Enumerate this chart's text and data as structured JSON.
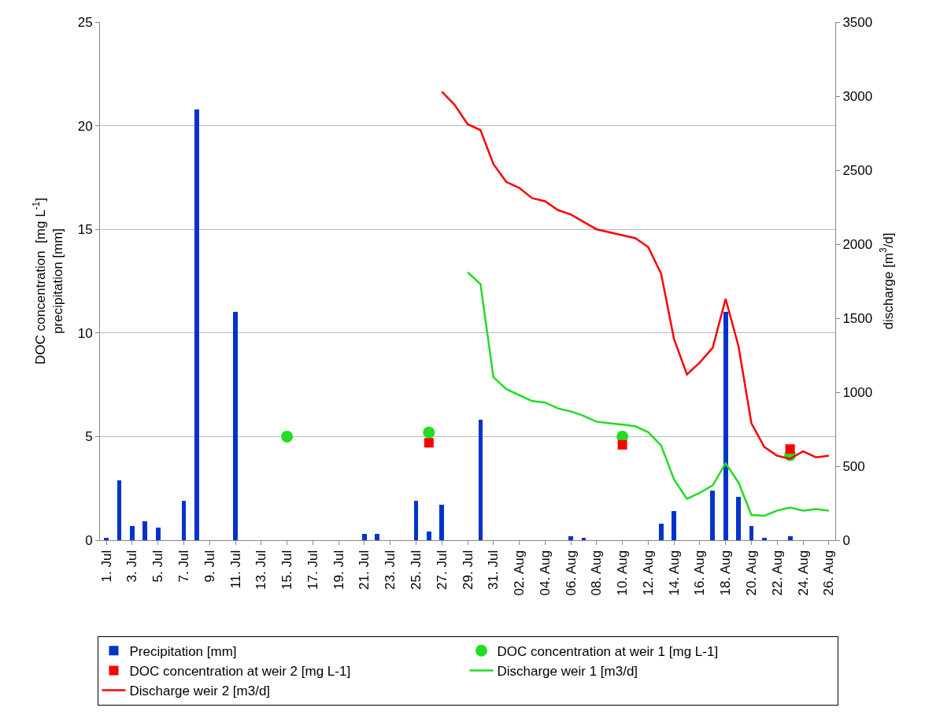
{
  "chart_data": {
    "type": "bar",
    "ylabel": "DOC concentration  [mg L$^{-1}$]\nprecipitation [mm]",
    "y2label": "discharge [m$^{3}$/d]",
    "categories": [
      "1. Jul",
      null,
      "3. Jul",
      null,
      "5. Jul",
      null,
      "7. Jul",
      null,
      "9. Jul",
      null,
      "11. Jul",
      null,
      "13. Jul",
      null,
      "15. Jul",
      null,
      "17. Jul",
      null,
      "19. Jul",
      null,
      "21. Jul",
      null,
      "23. Jul",
      null,
      "25. Jul",
      null,
      "27. Jul",
      null,
      "29. Jul",
      null,
      "31. Jul",
      null,
      "02. Aug",
      null,
      "04. Aug",
      null,
      "06. Aug",
      null,
      "08. Aug",
      null,
      "10. Aug",
      null,
      "12. Aug",
      null,
      "14. Aug",
      null,
      "16. Aug",
      null,
      "18. Aug",
      null,
      "20. Aug",
      null,
      "22. Aug",
      null,
      "24. Aug",
      null,
      "26. Aug"
    ],
    "series": [
      {
        "name": "Precipitation [mm]",
        "color": "#0033cc",
        "values": [
          0.1,
          2.9,
          0.7,
          0.9,
          0.6,
          0,
          1.9,
          20.8,
          0,
          0,
          11.0,
          0,
          0,
          0,
          0,
          0,
          0,
          0,
          0,
          0,
          0.3,
          0.3,
          0,
          0,
          1.9,
          0.4,
          1.7,
          0,
          0,
          5.8,
          0,
          0,
          0,
          0,
          0,
          0,
          0.2,
          0.1,
          0,
          0,
          0,
          0,
          0,
          0.8,
          1.4,
          0,
          0,
          2.4,
          11.0,
          2.1,
          0.7,
          0.1,
          0,
          0.2,
          0,
          0,
          0
        ]
      },
      {
        "name": "DOC concentration at weir 1 [mg L-1]",
        "type": "scatter",
        "marker": "circle",
        "color": "#22dd22",
        "values": [
          null,
          null,
          null,
          null,
          null,
          null,
          null,
          null,
          null,
          null,
          null,
          null,
          null,
          null,
          5.0,
          null,
          null,
          null,
          null,
          null,
          null,
          null,
          null,
          null,
          null,
          5.2,
          null,
          null,
          null,
          null,
          null,
          null,
          null,
          null,
          null,
          null,
          null,
          null,
          null,
          null,
          5.0,
          null,
          null,
          null,
          null,
          null,
          null,
          null,
          null,
          null,
          null,
          null,
          null,
          4.1,
          null,
          null,
          null
        ]
      },
      {
        "name": "DOC concentration at weir 2 [mg L-1]",
        "type": "scatter",
        "marker": "square",
        "color": "#ff0000",
        "values": [
          null,
          null,
          null,
          null,
          null,
          null,
          null,
          null,
          null,
          null,
          null,
          null,
          null,
          null,
          null,
          null,
          null,
          null,
          null,
          null,
          null,
          null,
          null,
          null,
          null,
          4.7,
          null,
          null,
          null,
          null,
          null,
          null,
          null,
          null,
          null,
          null,
          null,
          null,
          null,
          null,
          4.6,
          null,
          null,
          null,
          null,
          null,
          null,
          null,
          null,
          null,
          null,
          null,
          null,
          4.4,
          null,
          null,
          null
        ]
      },
      {
        "name": "Discharge weir 1 [m3/d]",
        "type": "line",
        "axis": "y2",
        "color": "#22dd22",
        "values": [
          null,
          null,
          null,
          null,
          null,
          null,
          null,
          null,
          null,
          null,
          null,
          null,
          null,
          null,
          null,
          null,
          null,
          null,
          null,
          null,
          null,
          null,
          null,
          null,
          null,
          null,
          null,
          null,
          1810,
          1730,
          1100,
          1020,
          980,
          940,
          930,
          890,
          870,
          840,
          800,
          790,
          780,
          770,
          730,
          640,
          410,
          280,
          320,
          370,
          520,
          390,
          170,
          165,
          200,
          220,
          200,
          210,
          200
        ]
      },
      {
        "name": "Discharge weir 2 [m3/d]",
        "type": "line",
        "axis": "y2",
        "color": "#ff0000",
        "values": [
          null,
          null,
          null,
          null,
          null,
          null,
          null,
          null,
          null,
          null,
          null,
          null,
          null,
          null,
          null,
          null,
          null,
          null,
          null,
          null,
          null,
          null,
          null,
          null,
          null,
          null,
          3030,
          2940,
          2810,
          2770,
          2540,
          2420,
          2380,
          2310,
          2290,
          2230,
          2200,
          2150,
          2100,
          2080,
          2060,
          2040,
          1980,
          1800,
          1360,
          1120,
          1200,
          1300,
          1630,
          1310,
          790,
          630,
          570,
          550,
          600,
          560,
          570
        ]
      }
    ],
    "ylim": [
      0,
      25
    ],
    "yticks": [
      0,
      5,
      10,
      15,
      20,
      25
    ],
    "y2lim": [
      0,
      3500
    ],
    "y2ticks": [
      0,
      500,
      1000,
      1500,
      2000,
      2500,
      3000,
      3500
    ],
    "grid": "y",
    "legend": "bottom",
    "line_style": "solid"
  }
}
